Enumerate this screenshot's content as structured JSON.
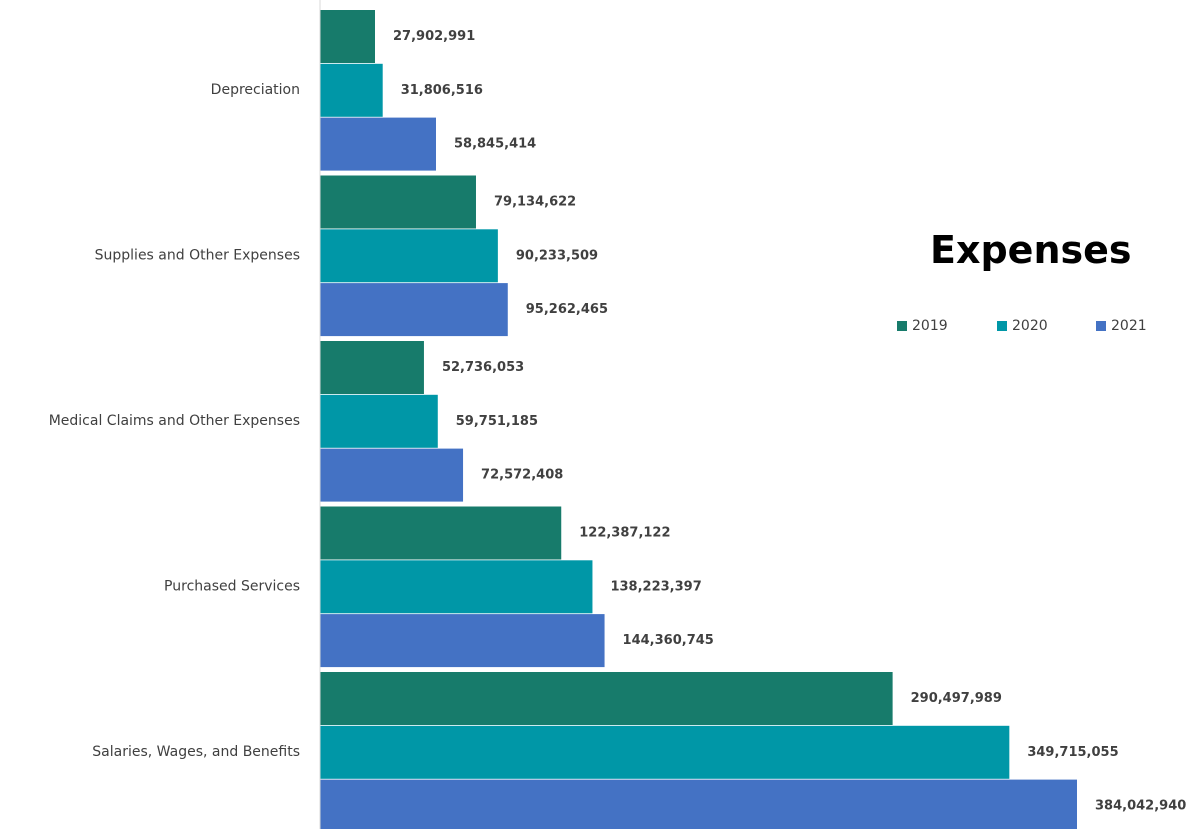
{
  "chart_data": {
    "type": "bar",
    "orientation": "horizontal",
    "title": "Expenses",
    "categories": [
      "Depreciation",
      "Supplies and Other Expenses",
      "Medical Claims and Other Expenses",
      "Purchased Services",
      "Salaries, Wages, and Benefits"
    ],
    "series": [
      {
        "name": "2019",
        "color": "#177b6b",
        "values": [
          27902991,
          79134622,
          52736053,
          122387122,
          290497989
        ],
        "labels": [
          "27,902,991",
          "79,134,622",
          "52,736,053",
          "122,387,122",
          "290,497,989"
        ]
      },
      {
        "name": "2020",
        "color": "#0097a7",
        "values": [
          31806516,
          90233509,
          59751185,
          138223397,
          349715055
        ],
        "labels": [
          "31,806,516",
          "90,233,509",
          "59,751,185",
          "138,223,397",
          "349,715,055"
        ]
      },
      {
        "name": "2021",
        "color": "#4472c4",
        "values": [
          58845414,
          95262465,
          72572408,
          144360745,
          384042940
        ],
        "labels": [
          "58,845,414",
          "95,262,465",
          "72,572,408",
          "144,360,745",
          "384,042,940"
        ]
      }
    ],
    "grid": false,
    "legend_position": "right"
  }
}
